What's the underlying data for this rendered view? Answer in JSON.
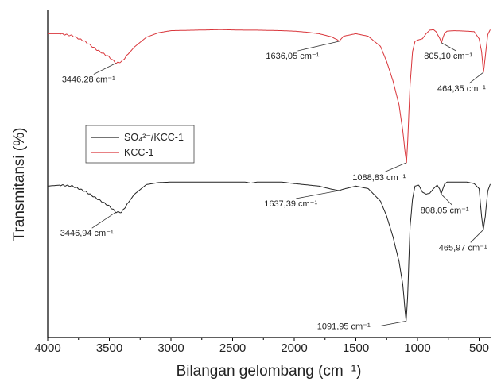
{
  "chart_data": {
    "type": "line",
    "xlabel": "Bilangan gelombang (cm⁻¹)",
    "ylabel": "Transmitansi (%)",
    "x_unit": "cm⁻¹",
    "xlim": [
      4000,
      400
    ],
    "x_reversed": true,
    "x_ticks": [
      "4000",
      "3500",
      "3000",
      "2500",
      "2000",
      "1500",
      "1000",
      "500"
    ],
    "y_ticks_shown": false,
    "grid": false,
    "legend_position": "left-center",
    "series": [
      {
        "name": "SO₄²⁻/KCC-1",
        "color": "#222222",
        "x": [
          4000,
          3900,
          3800,
          3700,
          3600,
          3500,
          3446.94,
          3400,
          3300,
          3200,
          3100,
          3000,
          2800,
          2600,
          2400,
          2350,
          2300,
          2100,
          2000,
          1800,
          1700,
          1637.39,
          1600,
          1500,
          1400,
          1300,
          1250,
          1200,
          1150,
          1120,
          1100,
          1091.95,
          1080,
          1060,
          1040,
          1020,
          990,
          960,
          930,
          900,
          870,
          840,
          820,
          808.05,
          795,
          780,
          760,
          700,
          600,
          540,
          500,
          480,
          465.97,
          450,
          430,
          410
        ],
        "y": [
          99,
          99.2,
          99,
          98,
          96.5,
          95,
          93.8,
          93.8,
          97.3,
          99.3,
          99.7,
          99.8,
          99.8,
          99.8,
          99.8,
          99.6,
          99.8,
          99.8,
          99.5,
          99,
          98.4,
          98.1,
          98.4,
          99,
          98.5,
          96,
          93,
          89,
          84,
          79.5,
          74,
          72.1,
          77,
          91,
          96.5,
          99,
          99.2,
          97.8,
          97.4,
          97.6,
          98.5,
          99.2,
          98.4,
          97.4,
          98.4,
          99.4,
          99.8,
          99.8,
          99.8,
          99.5,
          98.5,
          93,
          90.3,
          93,
          98,
          99.4
        ]
      },
      {
        "name": "KCC-1",
        "color": "#d9363b",
        "x": [
          4000,
          3900,
          3800,
          3700,
          3600,
          3500,
          3446.28,
          3400,
          3300,
          3200,
          3100,
          3000,
          2800,
          2600,
          2400,
          2300,
          2100,
          2000,
          1900,
          1800,
          1700,
          1650,
          1636.05,
          1600,
          1500,
          1400,
          1300,
          1250,
          1200,
          1150,
          1120,
          1100,
          1088.83,
          1080,
          1060,
          1040,
          1020,
          990,
          960,
          930,
          900,
          870,
          850,
          820,
          805.1,
          795,
          780,
          760,
          700,
          600,
          540,
          500,
          480,
          464.35,
          450,
          430,
          410
        ],
        "y": [
          99,
          99,
          98.6,
          97.5,
          95.8,
          94.4,
          93.2,
          93.5,
          96.3,
          98.3,
          99.2,
          99.6,
          99.7,
          99.8,
          99.7,
          99.7,
          99.6,
          99.5,
          99.3,
          99,
          98.4,
          97.8,
          97.5,
          98.5,
          99,
          98.5,
          96.5,
          93.5,
          89.8,
          85,
          80,
          75.5,
          73.6,
          77.5,
          89,
          95.5,
          97.5,
          97.8,
          98,
          99,
          99.7,
          99.8,
          99.4,
          98.1,
          97.2,
          98.1,
          99.1,
          99.5,
          99.6,
          99.5,
          99.4,
          98,
          95.5,
          91.4,
          94.5,
          98.8,
          99.8
        ]
      }
    ],
    "annotations": [
      {
        "series": 1,
        "x": 3446.28,
        "label": "3446,28 cm⁻¹"
      },
      {
        "series": 1,
        "x": 1636.05,
        "label": "1636,05 cm⁻¹"
      },
      {
        "series": 1,
        "x": 1088.83,
        "label": "1088,83 cm⁻¹"
      },
      {
        "series": 1,
        "x": 805.1,
        "label": "805,10 cm⁻¹"
      },
      {
        "series": 1,
        "x": 464.35,
        "label": "464,35 cm⁻¹"
      },
      {
        "series": 0,
        "x": 3446.94,
        "label": "3446,94 cm⁻¹"
      },
      {
        "series": 0,
        "x": 1637.39,
        "label": "1637,39 cm⁻¹"
      },
      {
        "series": 0,
        "x": 1091.95,
        "label": "1091,95 cm⁻¹"
      },
      {
        "series": 0,
        "x": 808.05,
        "label": "808,05 cm⁻¹"
      },
      {
        "series": 0,
        "x": 465.97,
        "label": "465,97 cm⁻¹"
      }
    ]
  }
}
